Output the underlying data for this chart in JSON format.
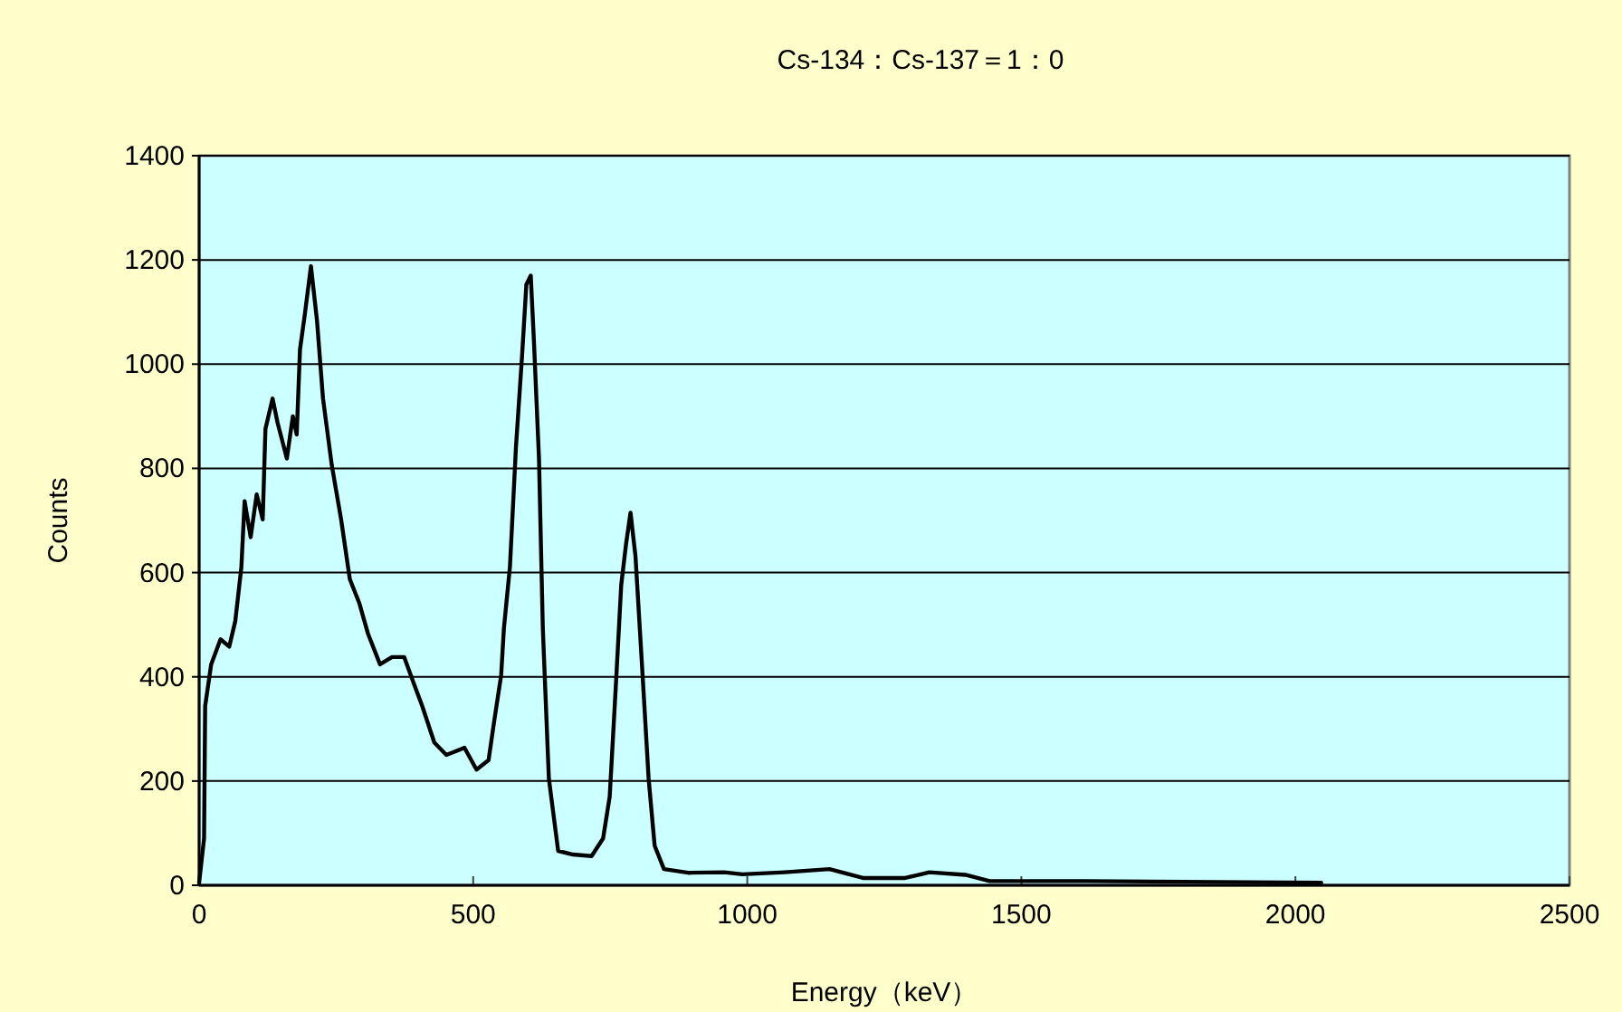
{
  "chart_data": {
    "type": "line",
    "title": "Cs-134：Cs-137＝1：0",
    "xlabel": "Energy（keV）",
    "ylabel": "Counts",
    "x": [
      0,
      9,
      11,
      22,
      39,
      55,
      66,
      77,
      83,
      94,
      105,
      116,
      121,
      134,
      143,
      160,
      171,
      178,
      184,
      193,
      204,
      215,
      226,
      242,
      259,
      275,
      292,
      308,
      330,
      352,
      374,
      391,
      407,
      429,
      451,
      484,
      506,
      528,
      539,
      551,
      556,
      567,
      578,
      589,
      597,
      605,
      611,
      620,
      627,
      638,
      655,
      682,
      716,
      737,
      749,
      760,
      770,
      779,
      787,
      796,
      809,
      820,
      831,
      848,
      892,
      958,
      991,
      1068,
      1150,
      1211,
      1288,
      1332,
      1398,
      1442,
      1618,
      2047
    ],
    "series": [
      {
        "color": "#000000",
        "values": [
          5,
          90,
          344,
          424,
          472,
          458,
          507,
          610,
          737,
          668,
          750,
          702,
          876,
          934,
          888,
          819,
          900,
          865,
          1028,
          1097,
          1188,
          1084,
          934,
          806,
          702,
          587,
          542,
          483,
          424,
          438,
          438,
          389,
          344,
          274,
          250,
          264,
          222,
          240,
          320,
          403,
          493,
          611,
          841,
          1014,
          1153,
          1170,
          1039,
          819,
          493,
          205,
          66,
          59,
          56,
          90,
          170,
          379,
          576,
          656,
          715,
          632,
          403,
          205,
          76,
          31,
          24,
          25,
          21,
          25,
          31,
          14,
          14,
          25,
          20,
          8,
          8,
          5
        ]
      }
    ],
    "xlim": [
      0,
      2500
    ],
    "xticks": [
      0,
      500,
      1000,
      1500,
      2000,
      2500
    ],
    "ylim": [
      0,
      1400
    ],
    "yticks": [
      0,
      200,
      400,
      600,
      800,
      1000,
      1200,
      1400
    ],
    "grid": "y",
    "marker": "none",
    "line_style": "solid"
  }
}
